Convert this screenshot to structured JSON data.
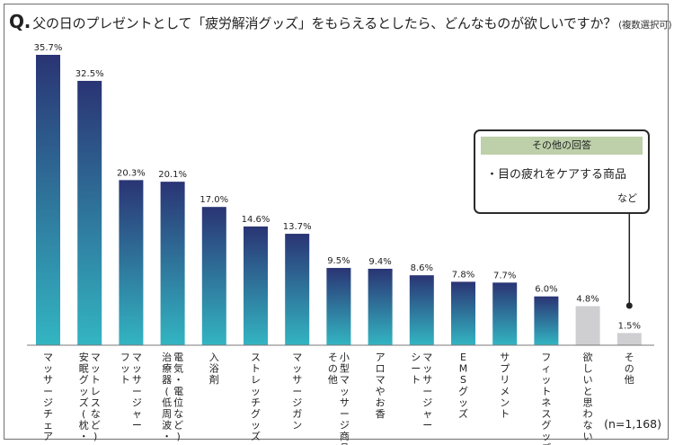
{
  "question": {
    "mark": "Q.",
    "text": "父の日のプレゼントとして「疲労解消グッズ」をもらえるとしたら、どんなものが欲しいですか？",
    "note": "(複数選択可)"
  },
  "sample_size": "(n=1,168)",
  "callout": {
    "header": "その他の回答",
    "body": "・目の疲れをケアする商品",
    "footer": "など"
  },
  "colors": {
    "gradient_top": "#2a3474",
    "gradient_bottom": "#33b5c2",
    "gray_bar": "#cfcfd2",
    "axis": "#7a7a7a"
  },
  "chart_data": {
    "type": "bar",
    "unit": "%",
    "ylim": [
      0,
      36
    ],
    "categories": [
      [
        "マッサージチェア"
      ],
      [
        "安眠グッズ(枕・",
        "マットレスなど)"
      ],
      [
        "フット",
        "マッサージャー"
      ],
      [
        "治療器(低周波・",
        "電気・電位など)"
      ],
      [
        "入浴剤"
      ],
      [
        "ストレッチグッズ"
      ],
      [
        "マッサージガン"
      ],
      [
        "その他",
        "小型マッサージ商品"
      ],
      [
        "アロマやお香"
      ],
      [
        "シート",
        "マッサージャー"
      ],
      [
        "EMSグッズ"
      ],
      [
        "サプリメント"
      ],
      [
        "フィットネスグッズ"
      ],
      [
        "欲しいと思わない"
      ],
      [
        "その他"
      ]
    ],
    "values": [
      35.7,
      32.5,
      20.3,
      20.1,
      17.0,
      14.6,
      13.7,
      9.5,
      9.4,
      8.6,
      7.8,
      7.7,
      6.0,
      4.8,
      1.5
    ],
    "value_labels": [
      "35.7%",
      "32.5%",
      "20.3%",
      "20.1%",
      "17.0%",
      "14.6%",
      "13.7%",
      "9.5%",
      "9.4%",
      "8.6%",
      "7.8%",
      "7.7%",
      "6.0%",
      "4.8%",
      "1.5%"
    ],
    "highlight": [
      "gradient",
      "gradient",
      "gradient",
      "gradient",
      "gradient",
      "gradient",
      "gradient",
      "gradient",
      "gradient",
      "gradient",
      "gradient",
      "gradient",
      "gradient",
      "gray",
      "gray"
    ]
  }
}
